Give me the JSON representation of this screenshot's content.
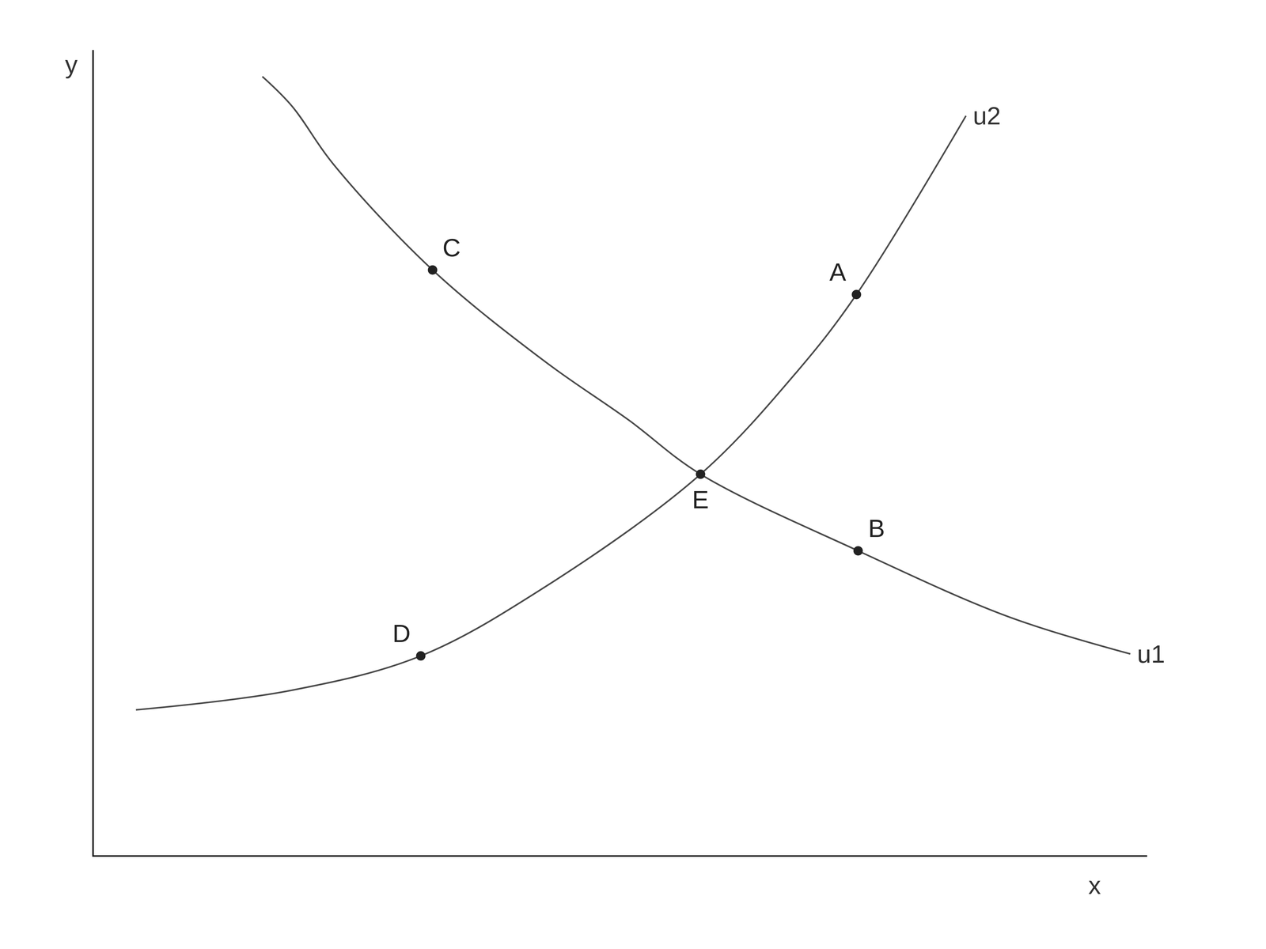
{
  "chart_data": {
    "type": "line",
    "x_label": "x",
    "y_label": "y",
    "xlim": [
      0,
      12.5
    ],
    "ylim": [
      0,
      8.2
    ],
    "tick_labels": false,
    "grid": false,
    "color": "#4a4a4a",
    "series": [
      {
        "name": "u1",
        "x": [
          2.0,
          2.35,
          2.85,
          4.02,
          5.35,
          6.35,
          7.2,
          9.07,
          10.85,
          12.3
        ],
        "values": [
          7.93,
          7.63,
          7.03,
          5.96,
          5.03,
          4.43,
          3.88,
          3.1,
          2.43,
          2.05
        ]
      },
      {
        "name": "u2",
        "x": [
          0.5,
          2.35,
          3.88,
          5.35,
          7.2,
          8.35,
          9.05,
          10.35
        ],
        "values": [
          1.48,
          1.68,
          2.03,
          2.73,
          3.88,
          4.93,
          5.71,
          7.53
        ]
      }
    ],
    "points": [
      {
        "label": "C",
        "x": 4.02,
        "y": 5.96,
        "on": [
          "u1"
        ]
      },
      {
        "label": "A",
        "x": 9.05,
        "y": 5.71,
        "on": [
          "u2"
        ]
      },
      {
        "label": "E",
        "x": 7.2,
        "y": 3.88,
        "on": [
          "u1",
          "u2"
        ]
      },
      {
        "label": "B",
        "x": 9.07,
        "y": 3.1,
        "on": [
          "u1"
        ]
      },
      {
        "label": "D",
        "x": 3.88,
        "y": 2.03,
        "on": [
          "u2"
        ]
      }
    ]
  }
}
